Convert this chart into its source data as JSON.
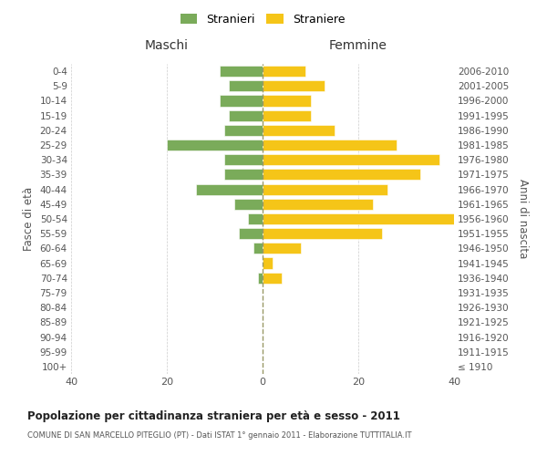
{
  "age_groups": [
    "100+",
    "95-99",
    "90-94",
    "85-89",
    "80-84",
    "75-79",
    "70-74",
    "65-69",
    "60-64",
    "55-59",
    "50-54",
    "45-49",
    "40-44",
    "35-39",
    "30-34",
    "25-29",
    "20-24",
    "15-19",
    "10-14",
    "5-9",
    "0-4"
  ],
  "birth_years": [
    "≤ 1910",
    "1911-1915",
    "1916-1920",
    "1921-1925",
    "1926-1930",
    "1931-1935",
    "1936-1940",
    "1941-1945",
    "1946-1950",
    "1951-1955",
    "1956-1960",
    "1961-1965",
    "1966-1970",
    "1971-1975",
    "1976-1980",
    "1981-1985",
    "1986-1990",
    "1991-1995",
    "1996-2000",
    "2001-2005",
    "2006-2010"
  ],
  "males": [
    0,
    0,
    0,
    0,
    0,
    0,
    1,
    0,
    2,
    5,
    3,
    6,
    14,
    8,
    8,
    20,
    8,
    7,
    9,
    7,
    9
  ],
  "females": [
    0,
    0,
    0,
    0,
    0,
    0,
    4,
    2,
    8,
    25,
    40,
    23,
    26,
    33,
    37,
    28,
    15,
    10,
    10,
    13,
    9
  ],
  "male_color": "#7aab5a",
  "female_color": "#f5c518",
  "male_label": "Stranieri",
  "female_label": "Straniere",
  "xlabel_left": "Maschi",
  "xlabel_right": "Femmine",
  "ylabel_left": "Fasce di età",
  "ylabel_right": "Anni di nascita",
  "title_main": "Popolazione per cittadinanza straniera per età e sesso - 2011",
  "title_sub": "COMUNE DI SAN MARCELLO PITEGLIO (PT) - Dati ISTAT 1° gennaio 2011 - Elaborazione TUTTITALIA.IT",
  "xlim": 40,
  "background_color": "#ffffff",
  "grid_color": "#cccccc",
  "dashed_line_color": "#999966"
}
